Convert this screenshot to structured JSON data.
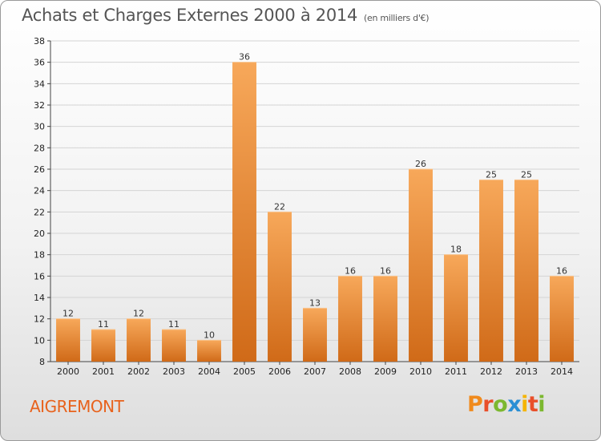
{
  "header": {
    "title": "Achats et Charges Externes 2000 à 2014",
    "subtitle": "(en milliers d'€)"
  },
  "commune": "AIGREMONT",
  "logo": {
    "letters": [
      "P",
      "r",
      "o",
      "x",
      "i",
      "t",
      "i"
    ],
    "colors": [
      "#f08a1c",
      "#e94f2a",
      "#7cb82f",
      "#2a8fd4",
      "#f5b400",
      "#e94f2a",
      "#7cb82f"
    ]
  },
  "colors": {
    "bar_light": "#f7a85a",
    "bar_dark": "#d06a18"
  },
  "chart_data": {
    "type": "bar",
    "title": "Achats et Charges Externes 2000 à 2014",
    "subtitle": "(en milliers d'€)",
    "categories": [
      "2000",
      "2001",
      "2002",
      "2003",
      "2004",
      "2005",
      "2006",
      "2007",
      "2008",
      "2009",
      "2010",
      "2011",
      "2012",
      "2013",
      "2014"
    ],
    "values": [
      12,
      11,
      12,
      11,
      10,
      36,
      22,
      13,
      16,
      16,
      26,
      18,
      25,
      25,
      16
    ],
    "ylim": [
      8,
      38
    ],
    "yticks": [
      8,
      10,
      12,
      14,
      16,
      18,
      20,
      22,
      24,
      26,
      28,
      30,
      32,
      34,
      36,
      38
    ],
    "grid": true
  }
}
